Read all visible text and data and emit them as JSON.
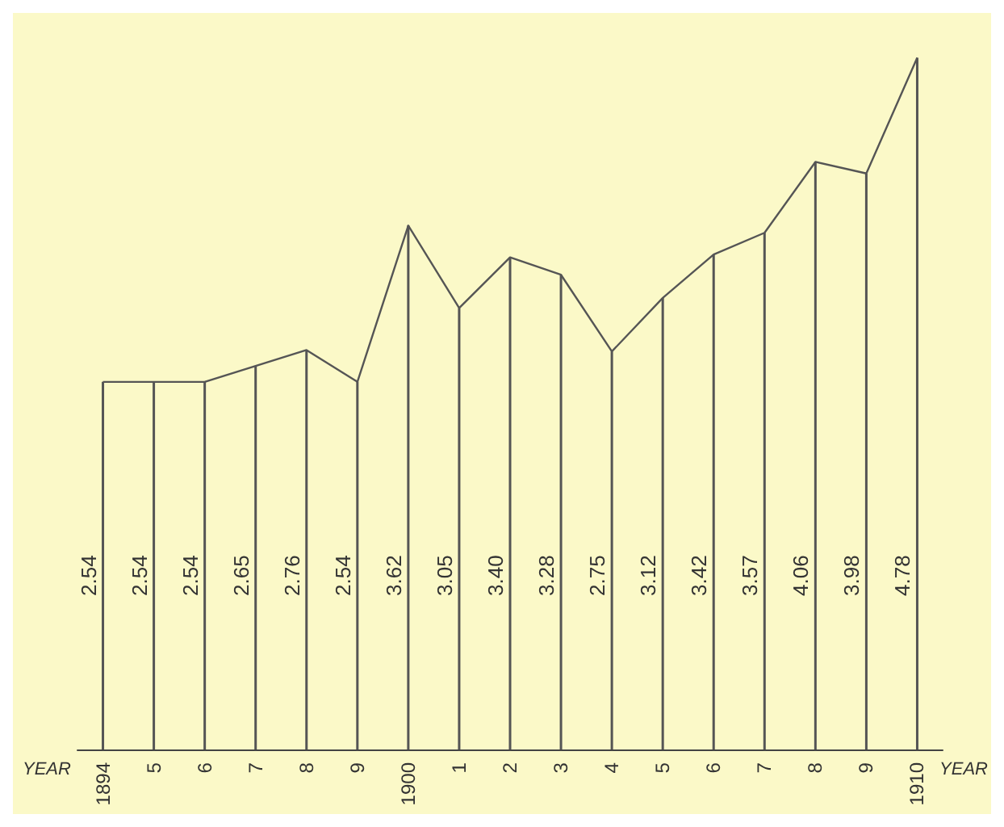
{
  "chart_data": {
    "type": "line",
    "xlabel": "YEAR",
    "categories": [
      "1894",
      "5",
      "6",
      "7",
      "8",
      "9",
      "1900",
      "1",
      "2",
      "3",
      "4",
      "5",
      "6",
      "7",
      "8",
      "9",
      "1910"
    ],
    "series": [
      {
        "type": "bar",
        "color": "#555555",
        "values": [
          2.54,
          2.54,
          2.54,
          2.65,
          2.76,
          2.54,
          3.62,
          3.05,
          3.4,
          3.28,
          2.75,
          3.12,
          3.42,
          3.57,
          4.06,
          3.98,
          4.78
        ],
        "value_labels": [
          "2.54",
          "2.54",
          "2.54",
          "2.65",
          "2.76",
          "2.54",
          "3.62",
          "3.05",
          "3.40",
          "3.28",
          "2.75",
          "3.12",
          "3.42",
          "3.57",
          "4.06",
          "3.98",
          "4.78"
        ]
      },
      {
        "color": "#555555",
        "values": [
          2.54,
          2.54,
          2.54,
          2.65,
          2.76,
          2.54,
          3.62,
          3.05,
          3.4,
          3.28,
          2.75,
          3.12,
          3.42,
          3.57,
          4.06,
          3.98,
          4.78
        ]
      }
    ],
    "marker": "none",
    "grid": false
  }
}
